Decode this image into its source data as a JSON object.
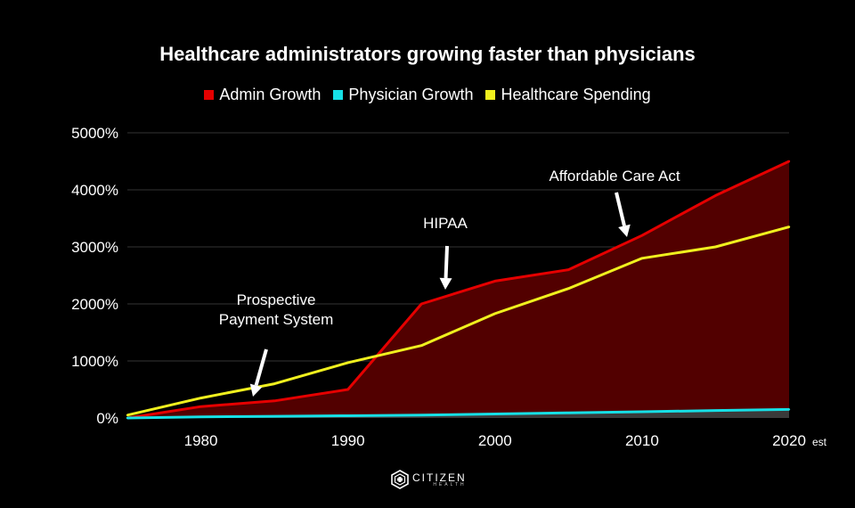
{
  "chart_data": {
    "type": "area",
    "title": "Healthcare administrators growing faster than physicians",
    "xlabel": "",
    "ylabel": "",
    "xlim": [
      1975,
      2020
    ],
    "ylim": [
      0,
      5000
    ],
    "x_ticks": [
      1980,
      1990,
      2000,
      2010,
      2020
    ],
    "y_ticks": [
      0,
      1000,
      2000,
      3000,
      4000,
      5000
    ],
    "y_tick_labels": [
      "0%",
      "1000%",
      "2000%",
      "3000%",
      "4000%",
      "5000%"
    ],
    "x_tick_labels": [
      "1980",
      "1990",
      "2000",
      "2010",
      "2020"
    ],
    "x_suffix_note": "est",
    "grid": true,
    "legend_position": "top-center",
    "series": [
      {
        "name": "Admin Growth",
        "color": "#e50000",
        "fill": "#520000",
        "x": [
          1975,
          1980,
          1985,
          1990,
          1995,
          2000,
          2005,
          2010,
          2015,
          2020
        ],
        "values": [
          0,
          200,
          300,
          500,
          2000,
          2400,
          2600,
          3200,
          3900,
          4500
        ]
      },
      {
        "name": "Physician Growth",
        "color": "#16e0e6",
        "fill": "#3a3a3a",
        "x": [
          1975,
          1980,
          1985,
          1990,
          1995,
          2000,
          2005,
          2010,
          2015,
          2020
        ],
        "values": [
          0,
          20,
          30,
          40,
          50,
          70,
          90,
          110,
          130,
          150
        ]
      },
      {
        "name": "Healthcare Spending",
        "color": "#f0f01e",
        "x": [
          1975,
          1980,
          1985,
          1990,
          1995,
          2000,
          2005,
          2010,
          2015,
          2020
        ],
        "values": [
          50,
          350,
          600,
          970,
          1270,
          1830,
          2270,
          2800,
          3000,
          3350
        ]
      }
    ],
    "annotations": [
      {
        "label_lines": [
          "Prospective",
          "Payment System"
        ],
        "points_to": [
          1983,
          250
        ]
      },
      {
        "label_lines": [
          "HIPAA"
        ],
        "points_to": [
          1997,
          2200
        ]
      },
      {
        "label_lines": [
          "Affordable Care Act"
        ],
        "points_to": [
          2009,
          3200
        ]
      }
    ]
  },
  "brand": {
    "name": "CITIZEN",
    "sub": "HEALTH"
  }
}
